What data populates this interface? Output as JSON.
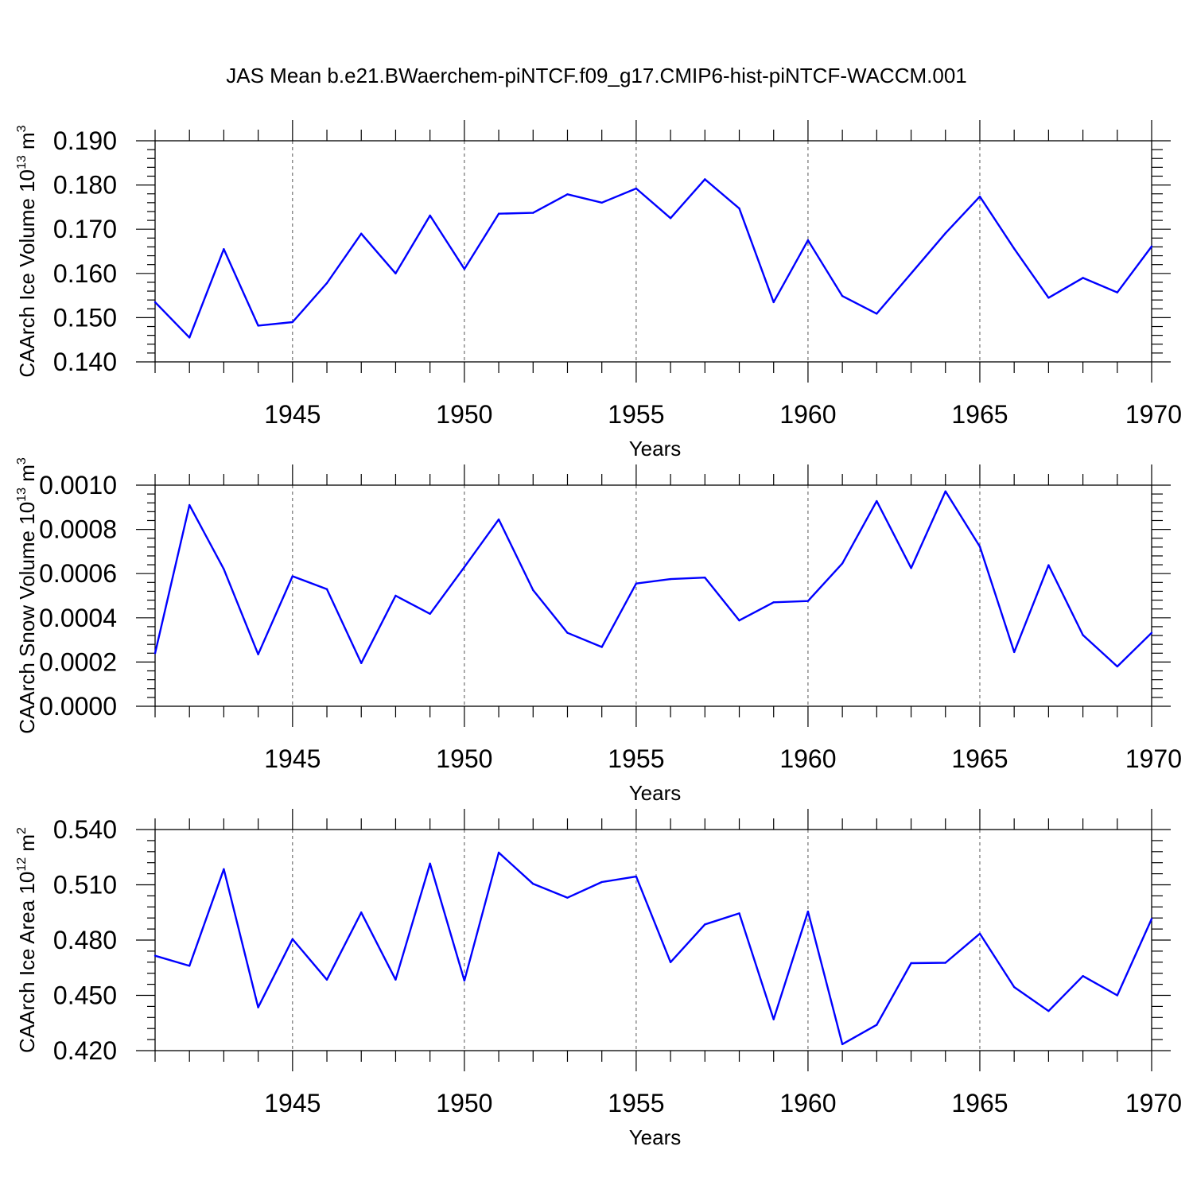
{
  "figure_title": "JAS Mean b.e21.BWaerchem-piNTCF.f09_g17.CMIP6-hist-piNTCF-WACCM.001",
  "colors": {
    "series": "#0000ff",
    "axes": "#000000",
    "grid": "#555555"
  },
  "chart_data": [
    {
      "type": "line",
      "ylabel": {
        "main": "CAArch Ice Volume 10",
        "exp": "13",
        "unit": " m",
        "unit_exp": "3"
      },
      "xlabel": "Years",
      "xlim": [
        1941,
        1970
      ],
      "ylim": [
        0.14,
        0.19
      ],
      "yticks": [
        0.14,
        0.15,
        0.16,
        0.17,
        0.18,
        0.19
      ],
      "ytick_labels": [
        "0.140",
        "0.150",
        "0.160",
        "0.170",
        "0.180",
        "0.190"
      ],
      "xticks": [
        1945,
        1950,
        1955,
        1960,
        1965,
        1970
      ],
      "xtick_labels": [
        "1945",
        "1950",
        "1955",
        "1960",
        "1965",
        "1970"
      ],
      "grid_x": [
        1945,
        1950,
        1955,
        1960,
        1965
      ],
      "series": [
        {
          "name": "CAArch Ice Volume",
          "x": [
            1941,
            1942,
            1943,
            1944,
            1945,
            1946,
            1947,
            1948,
            1949,
            1950,
            1951,
            1952,
            1953,
            1954,
            1955,
            1956,
            1957,
            1958,
            1959,
            1960,
            1961,
            1962,
            1963,
            1964,
            1965,
            1966,
            1967,
            1968,
            1969,
            1970
          ],
          "values": [
            0.1535,
            0.1455,
            0.1655,
            0.1482,
            0.149,
            0.1578,
            0.169,
            0.16,
            0.1731,
            0.161,
            0.1735,
            0.1737,
            0.1779,
            0.176,
            0.1792,
            0.1725,
            0.1813,
            0.1747,
            0.1535,
            0.1675,
            0.1549,
            0.1509,
            0.16,
            0.1691,
            0.1774,
            0.1656,
            0.1545,
            0.159,
            0.1557,
            0.1661
          ]
        }
      ]
    },
    {
      "type": "line",
      "ylabel": {
        "main": "CAArch Snow Volume 10",
        "exp": "13",
        "unit": " m",
        "unit_exp": "3"
      },
      "xlabel": "Years",
      "xlim": [
        1941,
        1970
      ],
      "ylim": [
        0.0,
        0.001
      ],
      "yticks": [
        0.0,
        0.0002,
        0.0004,
        0.0006,
        0.0008,
        0.001
      ],
      "ytick_labels": [
        "0.0000",
        "0.0002",
        "0.0004",
        "0.0006",
        "0.0008",
        "0.0010"
      ],
      "xticks": [
        1945,
        1950,
        1955,
        1960,
        1965,
        1970
      ],
      "xtick_labels": [
        "1945",
        "1950",
        "1955",
        "1960",
        "1965",
        "1970"
      ],
      "grid_x": [
        1945,
        1950,
        1955,
        1960,
        1965
      ],
      "series": [
        {
          "name": "CAArch Snow Volume",
          "x": [
            1941,
            1942,
            1943,
            1944,
            1945,
            1946,
            1947,
            1948,
            1949,
            1950,
            1951,
            1952,
            1953,
            1954,
            1955,
            1956,
            1957,
            1958,
            1959,
            1960,
            1961,
            1962,
            1963,
            1964,
            1965,
            1966,
            1967,
            1968,
            1969,
            1970
          ],
          "values": [
            0.00024,
            0.00091,
            0.00062,
            0.000235,
            0.000588,
            0.00053,
            0.000195,
            0.0005,
            0.000418,
            0.00063,
            0.000845,
            0.000525,
            0.000332,
            0.000268,
            0.000555,
            0.000575,
            0.000582,
            0.000388,
            0.00047,
            0.000476,
            0.000646,
            0.000928,
            0.000625,
            0.000972,
            0.000722,
            0.000245,
            0.000638,
            0.000322,
            0.00018,
            0.000332
          ]
        }
      ]
    },
    {
      "type": "line",
      "ylabel": {
        "main": "CAArch Ice Area 10",
        "exp": "12",
        "unit": " m",
        "unit_exp": "2"
      },
      "xlabel": "Years",
      "xlim": [
        1941,
        1970
      ],
      "ylim": [
        0.42,
        0.54
      ],
      "yticks": [
        0.42,
        0.45,
        0.48,
        0.51,
        0.54
      ],
      "ytick_labels": [
        "0.420",
        "0.450",
        "0.480",
        "0.510",
        "0.540"
      ],
      "xticks": [
        1945,
        1950,
        1955,
        1960,
        1965,
        1970
      ],
      "xtick_labels": [
        "1945",
        "1950",
        "1955",
        "1960",
        "1965",
        "1970"
      ],
      "grid_x": [
        1945,
        1950,
        1955,
        1960,
        1965
      ],
      "series": [
        {
          "name": "CAArch Ice Area",
          "x": [
            1941,
            1942,
            1943,
            1944,
            1945,
            1946,
            1947,
            1948,
            1949,
            1950,
            1951,
            1952,
            1953,
            1954,
            1955,
            1956,
            1957,
            1958,
            1959,
            1960,
            1961,
            1962,
            1963,
            1964,
            1965,
            1966,
            1967,
            1968,
            1969,
            1970
          ],
          "values": [
            0.4715,
            0.466,
            0.5185,
            0.4435,
            0.4805,
            0.4585,
            0.495,
            0.4585,
            0.5215,
            0.458,
            0.5275,
            0.5105,
            0.503,
            0.5115,
            0.5145,
            0.468,
            0.4885,
            0.4945,
            0.437,
            0.4955,
            0.4235,
            0.434,
            0.4675,
            0.4677,
            0.4835,
            0.4545,
            0.4415,
            0.4605,
            0.45,
            0.4915
          ]
        }
      ]
    }
  ]
}
